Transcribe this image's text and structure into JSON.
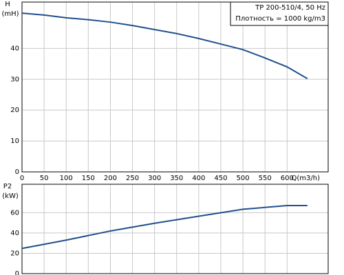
{
  "chart_data": [
    {
      "type": "line",
      "ylabel": [
        "H",
        "(mH)"
      ],
      "xlabel": "Q(m3/h)",
      "legend_box": [
        "TP 200-510/4, 50 Hz",
        "Плотность = 1000 kg/m3"
      ],
      "x": [
        0,
        50,
        100,
        150,
        200,
        250,
        300,
        350,
        400,
        450,
        500,
        550,
        600,
        646
      ],
      "series": [
        {
          "color": "#1f4e8c",
          "values": [
            51.4,
            50.8,
            49.9,
            49.3,
            48.5,
            47.4,
            46.1,
            44.8,
            43.2,
            41.4,
            39.6,
            36.9,
            34,
            30.2
          ]
        }
      ],
      "xlim": [
        0,
        693
      ],
      "ylim": [
        0,
        55
      ],
      "xticks": [
        0,
        50,
        100,
        150,
        200,
        250,
        300,
        350,
        400,
        450,
        500,
        550,
        600
      ],
      "yticks": [
        0,
        10,
        20,
        30,
        40
      ],
      "grid": true
    },
    {
      "type": "line",
      "ylabel": [
        "P2",
        "(kW)"
      ],
      "x": [
        0,
        100,
        200,
        300,
        400,
        500,
        600,
        646
      ],
      "series": [
        {
          "color": "#1f4e8c",
          "values": [
            24.8,
            33,
            42,
            49.6,
            56.5,
            63.4,
            67,
            67
          ]
        }
      ],
      "xlim": [
        0,
        693
      ],
      "ylim": [
        0,
        88
      ],
      "yticks": [
        0,
        20,
        40,
        60
      ],
      "grid": true
    }
  ]
}
